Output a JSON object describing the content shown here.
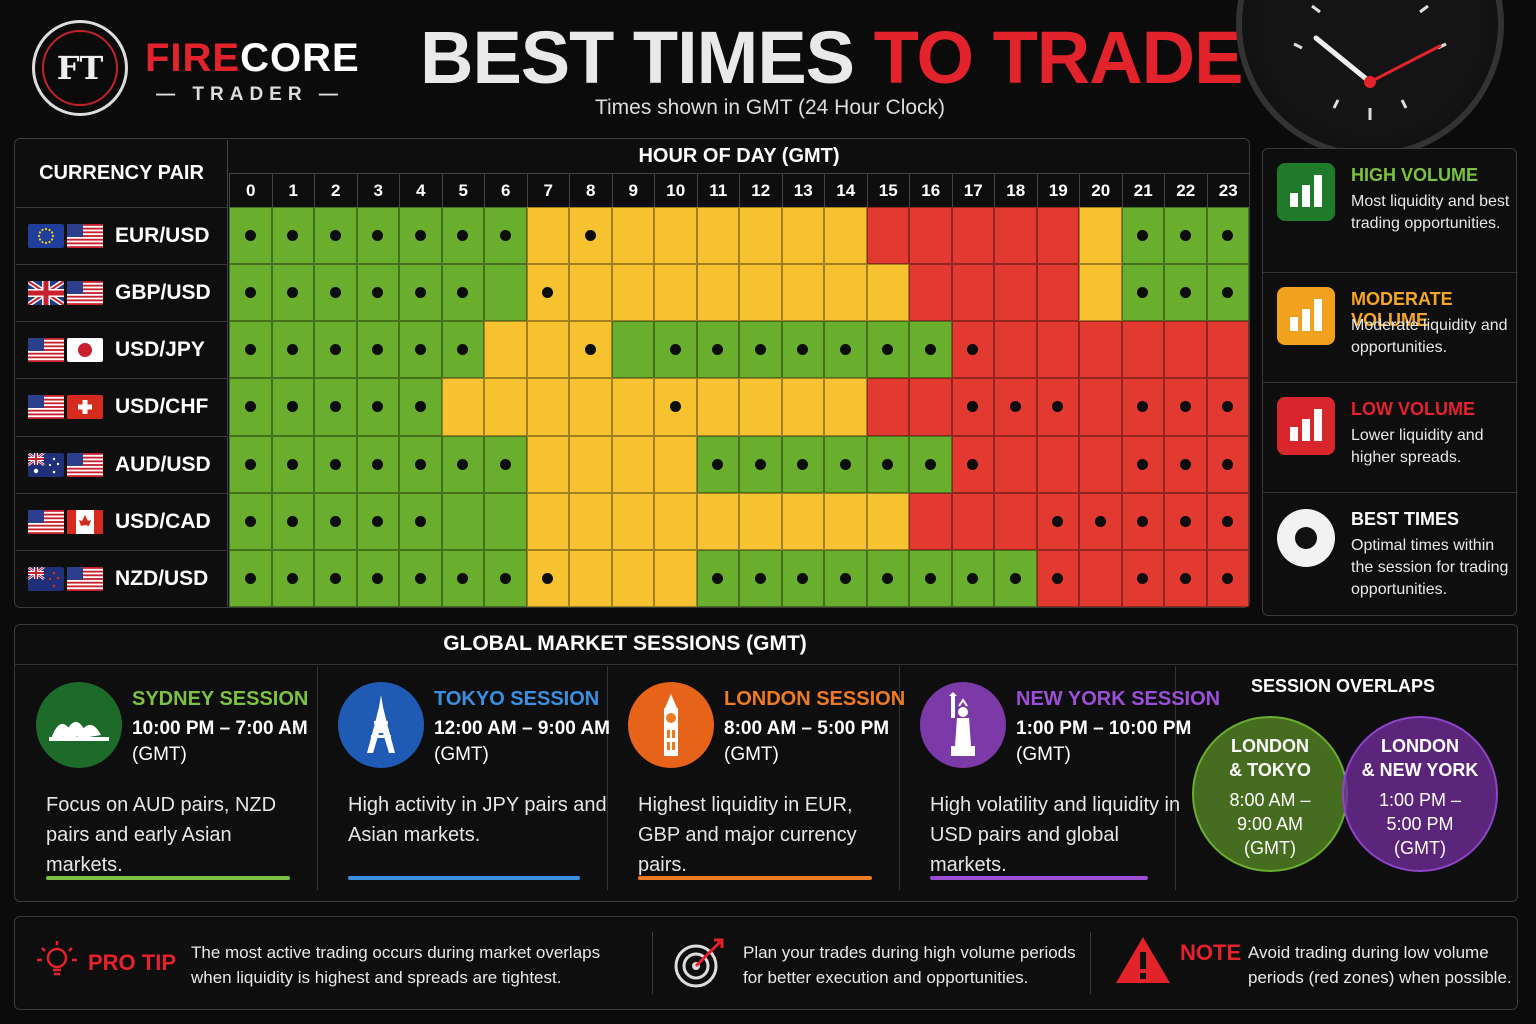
{
  "brand": {
    "name_red": "FIRE",
    "name_white": "CORE",
    "tagline": "TRADER",
    "logo_letters": "FT"
  },
  "title": {
    "part1": "BEST TIMES",
    "part2": "TO TRADE",
    "subtitle": "Times shown in GMT (24 Hour Clock)"
  },
  "grid": {
    "pair_header": "CURRENCY PAIR",
    "hour_header": "HOUR OF DAY (GMT)",
    "hours": [
      "0",
      "1",
      "2",
      "3",
      "4",
      "5",
      "6",
      "7",
      "8",
      "9",
      "10",
      "11",
      "12",
      "13",
      "14",
      "15",
      "16",
      "17",
      "18",
      "19",
      "20",
      "21",
      "22",
      "23"
    ],
    "rows": [
      {
        "pair": "EUR/USD",
        "flags": [
          "eu-flag",
          "us-flag"
        ],
        "levels": "GGGGGGGYYYYYYYYRRRRRYGGG",
        "dots": "111111101000000000000111"
      },
      {
        "pair": "GBP/USD",
        "flags": [
          "uk-flag",
          "us-flag"
        ],
        "levels": "GGGGGGGYYYYYYYYYRRRRYGGG",
        "dots": "111111010000000000000111"
      },
      {
        "pair": "USD/JPY",
        "flags": [
          "us-flag",
          "jp-flag"
        ],
        "levels": "GGGGGGYYYGGGGGGGGRRRRRRR",
        "dots": "111111001011111111000000"
      },
      {
        "pair": "USD/CHF",
        "flags": [
          "us-flag",
          "ch-flag"
        ],
        "levels": "GGGGGYYYYYYYYYYRRRRRRRRR",
        "dots": "111110000010000001110111"
      },
      {
        "pair": "AUD/USD",
        "flags": [
          "au-flag",
          "us-flag"
        ],
        "levels": "GGGGGGGYYYYGGGGGGRRRRRRR",
        "dots": "111111100001111111000111"
      },
      {
        "pair": "USD/CAD",
        "flags": [
          "us-flag",
          "ca-flag"
        ],
        "levels": "GGGGGGGYYYYYYYYYRRRRRRRR",
        "dots": "111110000000000000011111"
      },
      {
        "pair": "NZD/USD",
        "flags": [
          "nz-flag",
          "us-flag"
        ],
        "levels": "GGGGGGGYYYYGGGGGGGGRRRRR",
        "dots": "111111110001111111110111"
      }
    ],
    "colors": {
      "G": "#6aae2e",
      "Y": "#f7c22f",
      "R": "#e23a31"
    }
  },
  "legend": [
    {
      "title": "HIGH VOLUME",
      "desc": "Most liquidity and best trading opportunities.",
      "color": "#7cc242",
      "icon": "bar-chart-icon"
    },
    {
      "title": "MODERATE VOLUME",
      "desc": "Moderate liquidity and opportunities.",
      "color": "#f5a623",
      "icon": "bar-chart-icon"
    },
    {
      "title": "LOW VOLUME",
      "desc": "Lower liquidity and higher spreads.",
      "color": "#e3232b",
      "icon": "bar-chart-icon"
    },
    {
      "title": "BEST TIMES",
      "desc": "Optimal times within the session for trading opportunities.",
      "color": "#ffffff",
      "icon": "dot-ring-icon"
    }
  ],
  "sessions": {
    "header": "GLOBAL MARKET SESSIONS (GMT)",
    "items": [
      {
        "name": "SYDNEY SESSION",
        "time": "10:00 PM – 7:00 AM",
        "gmt": "(GMT)",
        "desc": "Focus on AUD pairs, NZD pairs and early Asian markets.",
        "color": "#7cc242",
        "icon": "opera-house-icon"
      },
      {
        "name": "TOKYO SESSION",
        "time": "12:00 AM – 9:00 AM",
        "gmt": "(GMT)",
        "desc": "High activity in JPY pairs and Asian markets.",
        "color": "#3b8fe0",
        "icon": "tokyo-tower-icon"
      },
      {
        "name": "LONDON SESSION",
        "time": "8:00 AM – 5:00 PM",
        "gmt": "(GMT)",
        "desc": "Highest liquidity in EUR, GBP and major currency pairs.",
        "color": "#f07a22",
        "icon": "big-ben-icon"
      },
      {
        "name": "NEW YORK SESSION",
        "time": "1:00 PM – 10:00 PM",
        "gmt": "(GMT)",
        "desc": "High volatility and liquidity in USD pairs and global markets.",
        "color": "#9b4fd6",
        "icon": "statue-of-liberty-icon"
      }
    ],
    "overlaps": {
      "header": "SESSION OVERLAPS",
      "left": {
        "line1": "LONDON",
        "line2": "& TOKYO",
        "time1": "8:00 AM –",
        "time2": "9:00 AM",
        "gmt": "(GMT)"
      },
      "right": {
        "line1": "LONDON",
        "line2": "& NEW YORK",
        "time1": "1:00 PM –",
        "time2": "5:00 PM",
        "gmt": "(GMT)"
      }
    }
  },
  "tips": {
    "pro_label": "PRO TIP",
    "pro_text": "The most active trading occurs during market overlaps when liquidity is highest and spreads are tightest.",
    "plan_text": "Plan your trades during high volume periods for better execution and opportunities.",
    "note_label": "NOTE",
    "note_text": "Avoid trading during low volume periods (red zones) when possible."
  }
}
